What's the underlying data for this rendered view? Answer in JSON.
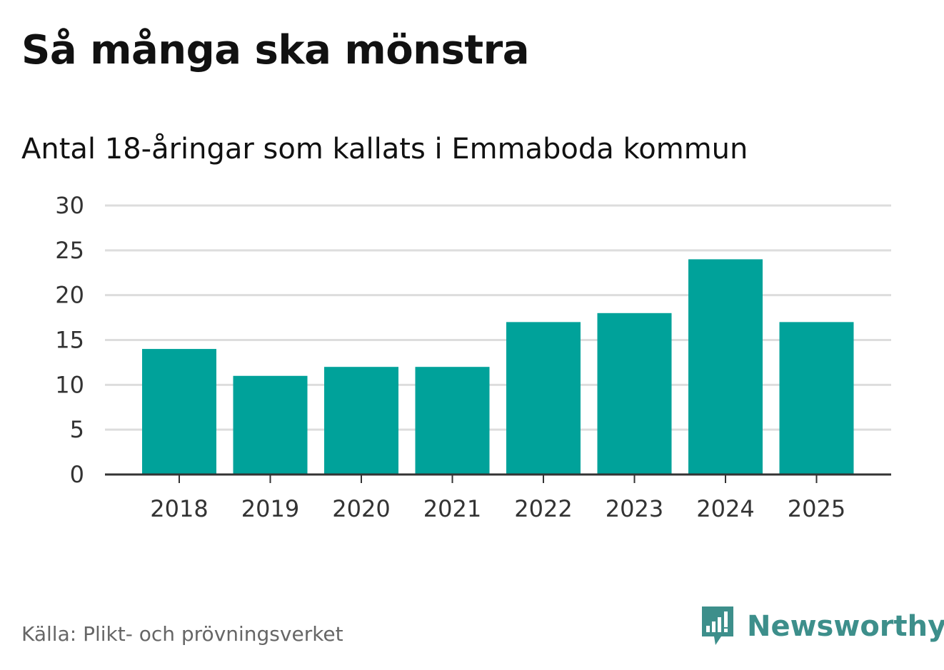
{
  "title": "Så många ska mönstra",
  "subtitle": "Antal 18-åringar som kallats i Emmaboda kommun",
  "source": "Källa: Plikt- och prövningsverket",
  "brand": {
    "name": "Newsworthy",
    "icon": "newsworthy-logo-icon",
    "color": "#3d8f8b"
  },
  "colors": {
    "bar": "#00a29a",
    "grid": "#dddddd",
    "axis": "#333333"
  },
  "chart_data": {
    "type": "bar",
    "categories": [
      "2018",
      "2019",
      "2020",
      "2021",
      "2022",
      "2023",
      "2024",
      "2025"
    ],
    "values": [
      14,
      11,
      12,
      12,
      17,
      18,
      24,
      17
    ],
    "yticks": [
      0,
      5,
      10,
      15,
      20,
      25,
      30
    ],
    "ylim": [
      0,
      30
    ],
    "grid": true,
    "legend": "none"
  }
}
